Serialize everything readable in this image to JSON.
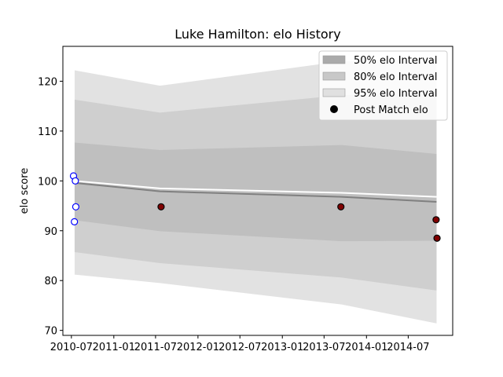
{
  "chart_data": {
    "type": "line",
    "title": "Luke Hamilton: elo History",
    "xlabel": "",
    "ylabel": "elo score",
    "xlim": [
      "2010-05-25",
      "2015-01-10"
    ],
    "ylim": [
      69,
      127
    ],
    "x_ticks": [
      "2010-07",
      "2011-01",
      "2011-07",
      "2012-01",
      "2012-07",
      "2013-01",
      "2013-07",
      "2014-01",
      "2014-07"
    ],
    "y_ticks": [
      70,
      80,
      90,
      100,
      110,
      120
    ],
    "grid": false,
    "legend_position": "top-right",
    "legend": [
      {
        "label": "50% elo Interval",
        "kind": "patch",
        "color": "#aaaaaa"
      },
      {
        "label": "80% elo Interval",
        "kind": "patch",
        "color": "#c8c8c8"
      },
      {
        "label": "95% elo Interval",
        "kind": "patch",
        "color": "#e0e0e0"
      },
      {
        "label": "Post Match elo",
        "kind": "marker",
        "color": "#000000"
      }
    ],
    "x": [
      "2010-07-15",
      "2011-07-20",
      "2013-09-15",
      "2014-11-01"
    ],
    "bands": [
      {
        "name": "95% elo Interval",
        "color": "#e2e2e2",
        "lower": [
          81.2,
          79.5,
          75.2,
          71.4
        ],
        "upper": [
          122.2,
          119.1,
          124.0,
          124.5
        ]
      },
      {
        "name": "80% elo Interval",
        "color": "#cfcfcf",
        "lower": [
          85.7,
          83.5,
          80.6,
          78.0
        ],
        "upper": [
          116.3,
          113.7,
          117.2,
          117.5
        ]
      },
      {
        "name": "50% elo Interval",
        "color": "#bfbfbf",
        "lower": [
          92.1,
          89.9,
          87.9,
          88.0
        ],
        "upper": [
          107.7,
          106.2,
          107.2,
          105.4
        ]
      }
    ],
    "lines": [
      {
        "name": "expected",
        "color": "#ffffff",
        "values": [
          100.0,
          98.5,
          97.6,
          96.8
        ]
      },
      {
        "name": "median",
        "color": "#808080",
        "values": [
          99.6,
          97.9,
          96.8,
          95.8
        ]
      }
    ],
    "points": [
      {
        "x": "2010-07-10",
        "y": 101.0,
        "fill": "#ffffff",
        "edge": "#0000ff"
      },
      {
        "x": "2010-07-18",
        "y": 100.0,
        "fill": "#ffffff",
        "edge": "#0000ff"
      },
      {
        "x": "2010-07-14",
        "y": 91.8,
        "fill": "#ffffff",
        "edge": "#0000ff"
      },
      {
        "x": "2010-07-20",
        "y": 94.8,
        "fill": "#ffffff",
        "edge": "#0000ff"
      },
      {
        "x": "2011-07-25",
        "y": 94.8,
        "fill": "#800000",
        "edge": "#000000"
      },
      {
        "x": "2013-09-12",
        "y": 94.8,
        "fill": "#800000",
        "edge": "#000000"
      },
      {
        "x": "2014-10-30",
        "y": 92.2,
        "fill": "#800000",
        "edge": "#000000"
      },
      {
        "x": "2014-11-03",
        "y": 88.5,
        "fill": "#800000",
        "edge": "#000000"
      }
    ]
  }
}
